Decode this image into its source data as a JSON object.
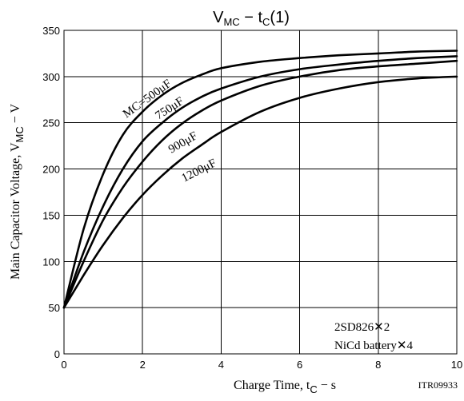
{
  "chart_data": {
    "type": "line",
    "title_main": "V",
    "title_sub1": "MC",
    "title_mid": " − t",
    "title_sub2": "C",
    "title_tail": "(1)",
    "xlabel_main": "Charge Time, t",
    "xlabel_sub": "C",
    "xlabel_tail": " − s",
    "ylabel_main": "Main Capacitor Voltage, V",
    "ylabel_sub": "MC",
    "ylabel_tail": " − V",
    "xlim": [
      0,
      10
    ],
    "ylim": [
      0,
      350
    ],
    "xticks": [
      "0",
      "2",
      "4",
      "6",
      "8",
      "10"
    ],
    "yticks": [
      "0",
      "50",
      "100",
      "150",
      "200",
      "250",
      "300",
      "350"
    ],
    "grid": true,
    "x": [
      0,
      0.5,
      1,
      1.5,
      2,
      2.5,
      3,
      3.5,
      4,
      5,
      6,
      7,
      8,
      9,
      10
    ],
    "series": [
      {
        "name": "MC=500μF",
        "values": [
          50,
          135,
          195,
          237,
          262,
          280,
          293,
          302,
          309,
          316,
          320,
          323,
          325,
          327,
          328
        ]
      },
      {
        "name": "750μF",
        "values": [
          50,
          110,
          160,
          200,
          230,
          250,
          266,
          278,
          287,
          300,
          308,
          313,
          317,
          320,
          322
        ]
      },
      {
        "name": "900μF",
        "values": [
          50,
          100,
          145,
          180,
          208,
          231,
          249,
          263,
          274,
          290,
          300,
          307,
          311,
          314,
          317
        ]
      },
      {
        "name": "1200μF",
        "values": [
          50,
          85,
          118,
          147,
          172,
          193,
          211,
          226,
          240,
          262,
          277,
          287,
          294,
          298,
          300
        ]
      }
    ],
    "annotations": {
      "line1": "2SD826✕2",
      "line2": "NiCd battery✕4",
      "code": "ITR09933"
    }
  }
}
